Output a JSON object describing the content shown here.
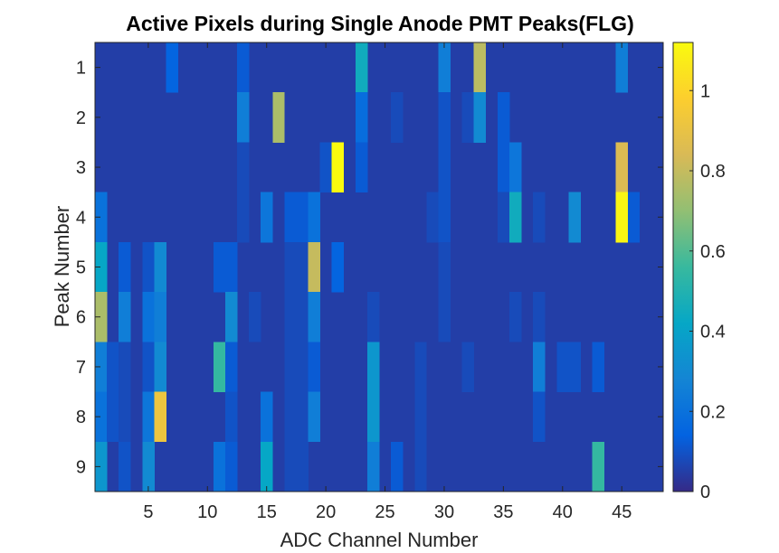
{
  "chart_data": {
    "type": "heatmap",
    "title": "Active Pixels during Single Anode PMT Peaks(FLG)",
    "xlabel": "ADC Channel Number",
    "ylabel": "Peak Number",
    "xlim": [
      0.5,
      48.5
    ],
    "ylim": [
      0.5,
      9.5
    ],
    "y_reversed": true,
    "x_ticks": [
      5,
      10,
      15,
      20,
      25,
      30,
      35,
      40,
      45
    ],
    "y_ticks": [
      1,
      2,
      3,
      4,
      5,
      6,
      7,
      8,
      9
    ],
    "colorbar": {
      "clim": [
        0,
        1.12
      ],
      "ticks": [
        0,
        0.2,
        0.4,
        0.6,
        0.8,
        1
      ],
      "colormap": "parula"
    },
    "base_value": 0.05,
    "grid": false,
    "rows": [
      {
        "peak": 1,
        "cells": [
          [
            7,
            0.15
          ],
          [
            13,
            0.12
          ],
          [
            23,
            0.45
          ],
          [
            30,
            0.25
          ],
          [
            33,
            0.78
          ],
          [
            45,
            0.25
          ]
        ]
      },
      {
        "peak": 2,
        "cells": [
          [
            13,
            0.25
          ],
          [
            16,
            0.75
          ],
          [
            23,
            0.18
          ],
          [
            26,
            0.08
          ],
          [
            30,
            0.1
          ],
          [
            32,
            0.08
          ],
          [
            33,
            0.3
          ],
          [
            35,
            0.12
          ]
        ]
      },
      {
        "peak": 3,
        "cells": [
          [
            13,
            0.08
          ],
          [
            20,
            0.1
          ],
          [
            21,
            1.12
          ],
          [
            23,
            0.12
          ],
          [
            30,
            0.1
          ],
          [
            35,
            0.12
          ],
          [
            36,
            0.22
          ],
          [
            45,
            0.85
          ]
        ]
      },
      {
        "peak": 4,
        "cells": [
          [
            1,
            0.2
          ],
          [
            13,
            0.08
          ],
          [
            15,
            0.22
          ],
          [
            17,
            0.12
          ],
          [
            18,
            0.12
          ],
          [
            19,
            0.2
          ],
          [
            29,
            0.08
          ],
          [
            30,
            0.1
          ],
          [
            35,
            0.08
          ],
          [
            36,
            0.45
          ],
          [
            38,
            0.08
          ],
          [
            41,
            0.3
          ],
          [
            45,
            1.1
          ],
          [
            46,
            0.12
          ]
        ]
      },
      {
        "peak": 5,
        "cells": [
          [
            1,
            0.42
          ],
          [
            3,
            0.12
          ],
          [
            5,
            0.1
          ],
          [
            6,
            0.3
          ],
          [
            11,
            0.12
          ],
          [
            12,
            0.12
          ],
          [
            17,
            0.08
          ],
          [
            18,
            0.08
          ],
          [
            19,
            0.8
          ],
          [
            21,
            0.15
          ],
          [
            30,
            0.08
          ]
        ]
      },
      {
        "peak": 6,
        "cells": [
          [
            1,
            0.75
          ],
          [
            3,
            0.25
          ],
          [
            5,
            0.2
          ],
          [
            6,
            0.25
          ],
          [
            12,
            0.3
          ],
          [
            14,
            0.08
          ],
          [
            17,
            0.08
          ],
          [
            18,
            0.08
          ],
          [
            19,
            0.25
          ],
          [
            24,
            0.08
          ],
          [
            30,
            0.08
          ],
          [
            36,
            0.08
          ],
          [
            38,
            0.08
          ]
        ]
      },
      {
        "peak": 7,
        "cells": [
          [
            1,
            0.25
          ],
          [
            2,
            0.1
          ],
          [
            3,
            0.08
          ],
          [
            5,
            0.1
          ],
          [
            6,
            0.3
          ],
          [
            11,
            0.55
          ],
          [
            12,
            0.12
          ],
          [
            17,
            0.08
          ],
          [
            18,
            0.08
          ],
          [
            19,
            0.12
          ],
          [
            24,
            0.35
          ],
          [
            28,
            0.08
          ],
          [
            32,
            0.08
          ],
          [
            38,
            0.25
          ],
          [
            40,
            0.1
          ],
          [
            41,
            0.1
          ],
          [
            43,
            0.12
          ]
        ]
      },
      {
        "peak": 8,
        "cells": [
          [
            1,
            0.2
          ],
          [
            2,
            0.1
          ],
          [
            3,
            0.08
          ],
          [
            5,
            0.22
          ],
          [
            6,
            0.92
          ],
          [
            12,
            0.1
          ],
          [
            15,
            0.2
          ],
          [
            17,
            0.08
          ],
          [
            18,
            0.08
          ],
          [
            19,
            0.25
          ],
          [
            24,
            0.35
          ],
          [
            28,
            0.08
          ],
          [
            38,
            0.1
          ]
        ]
      },
      {
        "peak": 9,
        "cells": [
          [
            1,
            0.35
          ],
          [
            3,
            0.1
          ],
          [
            5,
            0.3
          ],
          [
            11,
            0.2
          ],
          [
            12,
            0.12
          ],
          [
            15,
            0.42
          ],
          [
            17,
            0.08
          ],
          [
            18,
            0.08
          ],
          [
            24,
            0.25
          ],
          [
            26,
            0.12
          ],
          [
            28,
            0.08
          ],
          [
            43,
            0.55
          ]
        ]
      }
    ]
  }
}
